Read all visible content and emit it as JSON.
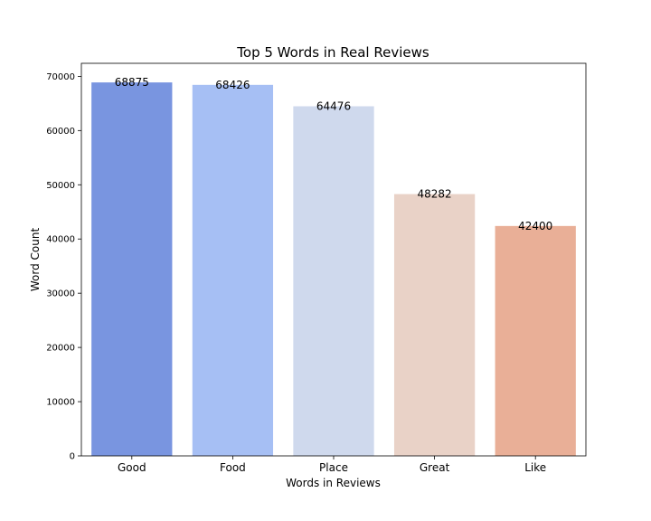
{
  "chart_data": {
    "type": "bar",
    "title": "Top 5 Words in Real Reviews",
    "xlabel": "Words in Reviews",
    "ylabel": "Word Count",
    "categories": [
      "Good",
      "Food",
      "Place",
      "Great",
      "Like"
    ],
    "values": [
      68875,
      68426,
      64476,
      48282,
      42400
    ],
    "data_labels": [
      "68875",
      "68426",
      "64476",
      "48282",
      "42400"
    ],
    "colors": [
      "#7995e0",
      "#a6bff4",
      "#cfd9ed",
      "#e9d2c7",
      "#e9af97"
    ],
    "ylim": [
      0,
      72400
    ],
    "yticks": [
      0,
      10000,
      20000,
      30000,
      40000,
      50000,
      60000,
      70000
    ],
    "grid": false,
    "legend": "none"
  }
}
